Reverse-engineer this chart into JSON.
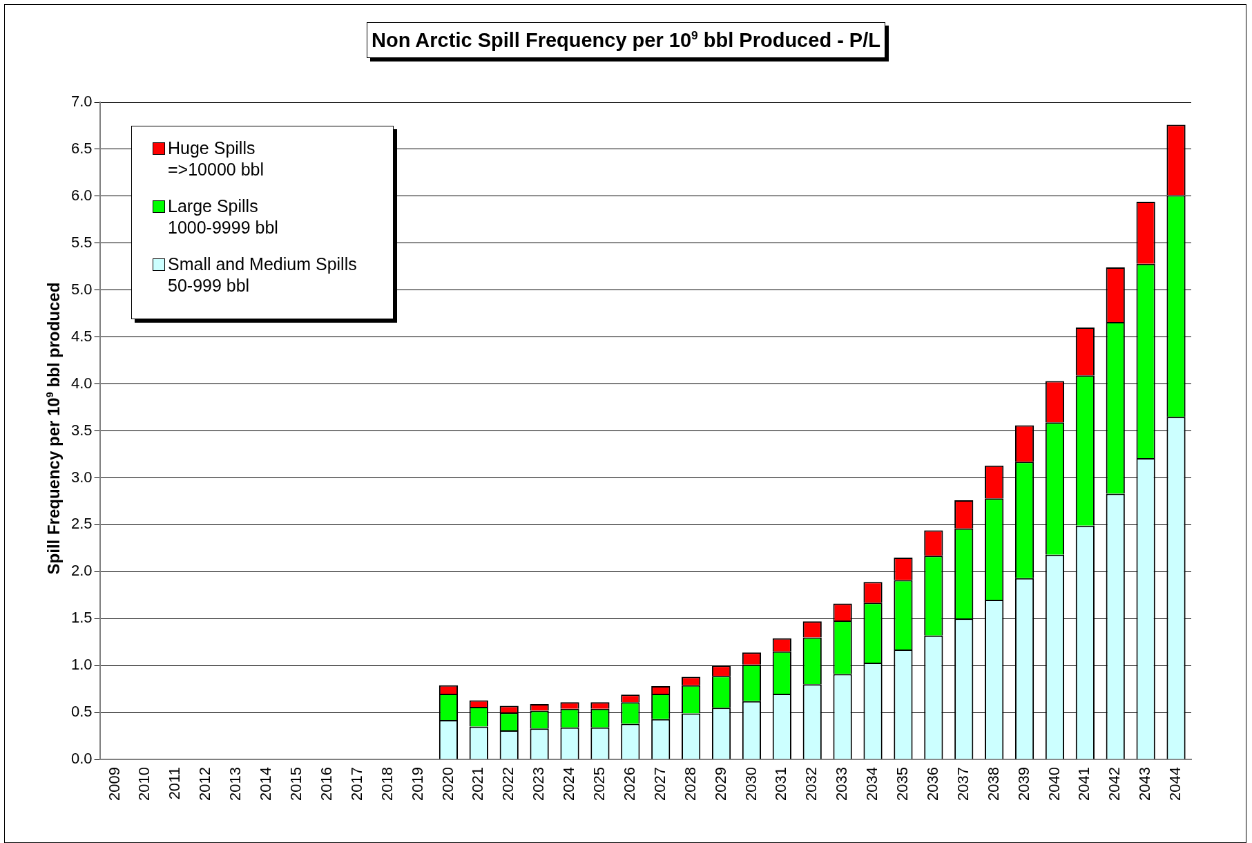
{
  "chart_data": {
    "type": "bar",
    "stacked": true,
    "title": "Non Arctic Spill Frequency per 10$^{9}$ bbl Produced - P/L",
    "ylabel": "Spill Frequency per 10$^{9}$ bbl produced",
    "categories": [
      "2009",
      "2010",
      "2011",
      "2012",
      "2013",
      "2014",
      "2015",
      "2016",
      "2017",
      "2018",
      "2019",
      "2020",
      "2021",
      "2022",
      "2023",
      "2024",
      "2025",
      "2026",
      "2027",
      "2028",
      "2029",
      "2030",
      "2031",
      "2032",
      "2033",
      "2034",
      "2035",
      "2036",
      "2037",
      "2038",
      "2039",
      "2040",
      "2041",
      "2042",
      "2043",
      "2044"
    ],
    "series": [
      {
        "name": "Small and Medium Spills\n50-999 bbl",
        "color": "#ccffff",
        "values": [
          null,
          null,
          null,
          null,
          null,
          null,
          null,
          null,
          null,
          null,
          null,
          0.42,
          0.35,
          0.31,
          0.33,
          0.34,
          0.34,
          0.38,
          0.43,
          0.49,
          0.55,
          0.62,
          0.7,
          0.8,
          0.91,
          1.03,
          1.17,
          1.32,
          1.5,
          1.7,
          1.93,
          2.18,
          2.49,
          2.83,
          3.21,
          3.65
        ]
      },
      {
        "name": "Large Spills\n1000-9999 bbl",
        "color": "#00ff00",
        "values": [
          null,
          null,
          null,
          null,
          null,
          null,
          null,
          null,
          null,
          null,
          null,
          0.28,
          0.21,
          0.19,
          0.19,
          0.2,
          0.2,
          0.23,
          0.27,
          0.3,
          0.34,
          0.39,
          0.45,
          0.5,
          0.57,
          0.64,
          0.74,
          0.85,
          0.96,
          1.08,
          1.24,
          1.41,
          1.6,
          1.83,
          2.07,
          2.36
        ]
      },
      {
        "name": "Huge Spills\n=>10000 bbl",
        "color": "#ff0000",
        "values": [
          null,
          null,
          null,
          null,
          null,
          null,
          null,
          null,
          null,
          null,
          null,
          0.09,
          0.07,
          0.07,
          0.07,
          0.07,
          0.07,
          0.08,
          0.08,
          0.09,
          0.11,
          0.13,
          0.14,
          0.17,
          0.18,
          0.22,
          0.24,
          0.27,
          0.3,
          0.35,
          0.39,
          0.44,
          0.51,
          0.58,
          0.66,
          0.75
        ]
      }
    ],
    "ylim": [
      0,
      7
    ],
    "yticks": [
      {
        "value": 0,
        "label": "0.0"
      },
      {
        "value": 0.5,
        "label": "0.5"
      },
      {
        "value": 1,
        "label": "1.0"
      },
      {
        "value": 1.5,
        "label": "1.5"
      },
      {
        "value": 2,
        "label": "2.0"
      },
      {
        "value": 2.5,
        "label": "2.5"
      },
      {
        "value": 3,
        "label": "3.0"
      },
      {
        "value": 3.5,
        "label": "3.5"
      },
      {
        "value": 4,
        "label": "4.0"
      },
      {
        "value": 4.5,
        "label": "4.5"
      },
      {
        "value": 5,
        "label": "5.0"
      },
      {
        "value": 5.5,
        "label": "5.5"
      },
      {
        "value": 6,
        "label": "6.0"
      },
      {
        "value": 6.5,
        "label": "6.5"
      },
      {
        "value": 7,
        "label": "7.0"
      }
    ],
    "grid": "y",
    "legend": "top left"
  }
}
